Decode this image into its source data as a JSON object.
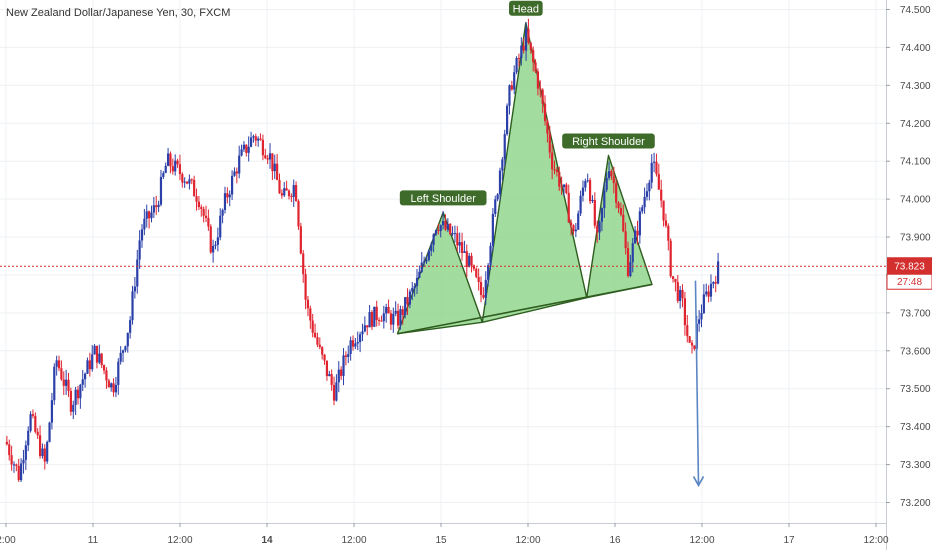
{
  "chart_data": {
    "type": "candlestick",
    "title": "New Zealand Dollar/Japanese Yen, 30, FXCM",
    "x_tick_labels": [
      "2:00",
      "11",
      "12:00",
      "14",
      "12:00",
      "15",
      "12:00",
      "16",
      "12:00",
      "17",
      "12:00"
    ],
    "y_tick_labels": [
      "74.500",
      "74.400",
      "74.300",
      "74.200",
      "74.100",
      "74.000",
      "73.900",
      "73.800",
      "73.700",
      "73.600",
      "73.500",
      "73.400",
      "73.300",
      "73.200"
    ],
    "y_range": [
      73.17,
      74.53
    ],
    "price_tag": {
      "last": "73.823",
      "countdown": "27:48"
    },
    "pattern": {
      "name": "head-and-shoulders",
      "labels": {
        "left": "Left Shoulder",
        "head": "Head",
        "right": "Right Shoulder"
      },
      "left_shoulder": [
        {
          "x": 9.0,
          "y": 73.645
        },
        {
          "x": 10.05,
          "y": 73.965
        },
        {
          "x": 10.95,
          "y": 73.675
        }
      ],
      "head": [
        {
          "x": 10.95,
          "y": 73.675
        },
        {
          "x": 11.95,
          "y": 74.465
        },
        {
          "x": 13.35,
          "y": 73.74
        }
      ],
      "right_shoulder": [
        {
          "x": 13.35,
          "y": 73.74
        },
        {
          "x": 13.85,
          "y": 74.115
        },
        {
          "x": 14.85,
          "y": 73.775
        }
      ],
      "neckline": [
        {
          "x": 9.0,
          "y": 73.645
        },
        {
          "x": 14.85,
          "y": 73.775
        }
      ]
    },
    "forecast_arrow": {
      "from": {
        "x": 15.85,
        "y": 73.785
      },
      "to": {
        "x": 15.92,
        "y": 73.245
      }
    },
    "colors": {
      "up": "#2a3fa8",
      "down": "#e0242f",
      "pattern_fill": "#8fd48a",
      "pattern_stroke": "#2e5d1f",
      "label_bg": "#3e6b2a",
      "price_line": "#d32f2f",
      "arrow": "#5b86c4",
      "grid": "#eef0f3"
    },
    "x_ticks": [
      0.0,
      2.0,
      4.0,
      6.0,
      8.0,
      10.0,
      12.0,
      14.0,
      16.0,
      18.0,
      20.0
    ],
    "y_ticks": [
      74.5,
      74.4,
      74.3,
      74.2,
      74.1,
      74.0,
      73.9,
      73.8,
      73.7,
      73.6,
      73.5,
      73.4,
      73.3,
      73.2
    ],
    "x_domain": [
      0.0,
      20.0
    ],
    "last_price": 73.823,
    "path": [
      [
        0.0,
        73.36
      ],
      [
        0.3,
        73.27
      ],
      [
        0.55,
        73.43
      ],
      [
        0.9,
        73.3
      ],
      [
        1.15,
        73.58
      ],
      [
        1.5,
        73.46
      ],
      [
        2.05,
        73.6
      ],
      [
        2.45,
        73.5
      ],
      [
        2.85,
        73.68
      ],
      [
        3.1,
        73.92
      ],
      [
        3.45,
        73.98
      ],
      [
        3.7,
        74.1
      ],
      [
        4.1,
        74.06
      ],
      [
        4.45,
        74.0
      ],
      [
        4.75,
        73.86
      ],
      [
        5.05,
        74.0
      ],
      [
        5.35,
        74.1
      ],
      [
        5.7,
        74.17
      ],
      [
        6.05,
        74.12
      ],
      [
        6.35,
        74.0
      ],
      [
        6.65,
        74.04
      ],
      [
        6.9,
        73.72
      ],
      [
        7.2,
        73.6
      ],
      [
        7.55,
        73.49
      ],
      [
        7.9,
        73.62
      ],
      [
        8.3,
        73.68
      ],
      [
        8.6,
        73.7
      ],
      [
        9.0,
        73.68
      ],
      [
        9.45,
        73.78
      ],
      [
        9.9,
        73.94
      ],
      [
        10.3,
        73.9
      ],
      [
        10.6,
        73.84
      ],
      [
        10.95,
        73.74
      ],
      [
        11.3,
        74.03
      ],
      [
        11.6,
        74.3
      ],
      [
        11.95,
        74.43
      ],
      [
        12.25,
        74.3
      ],
      [
        12.55,
        74.1
      ],
      [
        12.85,
        74.01
      ],
      [
        13.05,
        73.9
      ],
      [
        13.35,
        74.08
      ],
      [
        13.6,
        73.88
      ],
      [
        13.85,
        74.1
      ],
      [
        14.1,
        73.98
      ],
      [
        14.3,
        73.82
      ],
      [
        14.55,
        73.94
      ],
      [
        14.85,
        74.1
      ],
      [
        15.1,
        73.98
      ],
      [
        15.3,
        73.8
      ],
      [
        15.55,
        73.72
      ],
      [
        15.75,
        73.58
      ],
      [
        15.95,
        73.7
      ],
      [
        16.15,
        73.76
      ],
      [
        16.4,
        73.823
      ]
    ]
  }
}
